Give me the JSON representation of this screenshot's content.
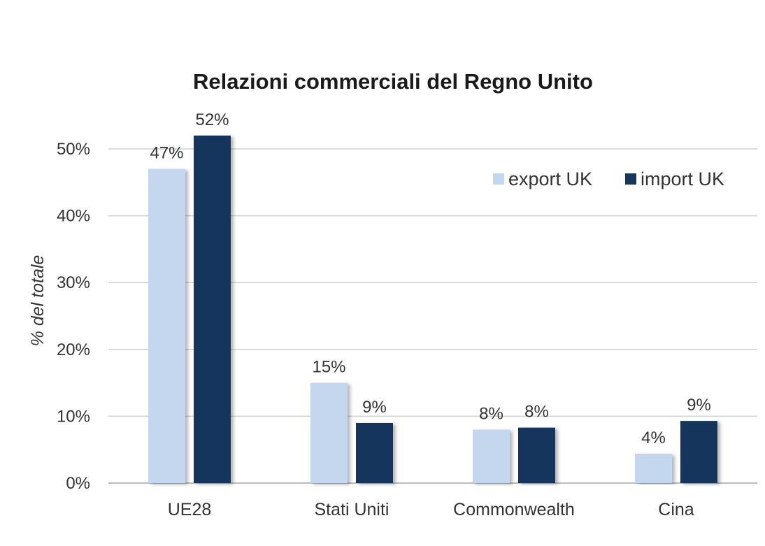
{
  "chart_data": {
    "type": "bar",
    "title": "Relazioni commerciali del Regno Unito",
    "ylabel": "% del totale",
    "xlabel": "",
    "categories": [
      "UE28",
      "Stati Uniti",
      "Commonwealth",
      "Cina"
    ],
    "series": [
      {
        "name": "export UK",
        "color": "#c5d7ef",
        "values": [
          47,
          15,
          8,
          4.4
        ],
        "labels": [
          "47%",
          "15%",
          "8%",
          "4%"
        ]
      },
      {
        "name": "import UK",
        "color": "#19365c",
        "values": [
          52,
          9,
          8.3,
          9.3
        ],
        "labels": [
          "52%",
          "9%",
          "8%",
          "9%"
        ]
      }
    ],
    "ylim": [
      0,
      50
    ],
    "yticks": [
      0,
      10,
      20,
      30,
      40,
      50
    ],
    "ytick_labels": [
      "0%",
      "10%",
      "20%",
      "30%",
      "40%",
      "50%"
    ],
    "grid": true,
    "legend": "top-right"
  }
}
